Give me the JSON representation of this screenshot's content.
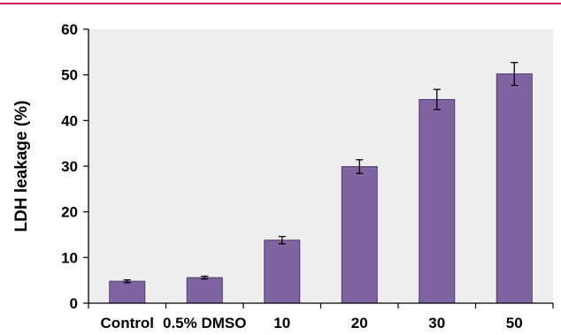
{
  "colors": {
    "accent_rule": "#c2185b",
    "plot_bg": "#eeeeee",
    "bar_fill": "#8064a2",
    "bar_stroke": "#4f3b6b"
  },
  "chart_data": {
    "type": "bar",
    "title": "",
    "xlabel": "",
    "ylabel": "LDH leakage (%)",
    "categories": [
      "Control",
      "0.5% DMSO",
      "10",
      "20",
      "30",
      "50"
    ],
    "values": [
      4.8,
      5.6,
      13.8,
      29.9,
      44.6,
      50.2
    ],
    "errors": [
      0.3,
      0.3,
      0.8,
      1.5,
      2.2,
      2.5
    ],
    "ylim": [
      0,
      60
    ],
    "yticks": [
      0,
      10,
      20,
      30,
      40,
      50,
      60
    ],
    "grid": false,
    "legend": "none"
  }
}
